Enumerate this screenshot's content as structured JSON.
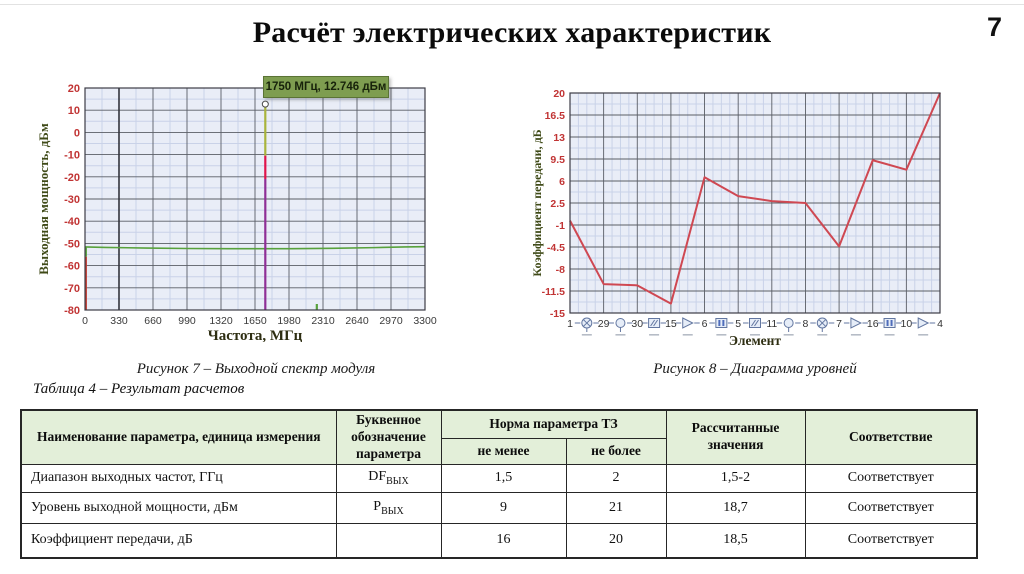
{
  "page": {
    "title": "Расчёт электрических характеристик",
    "page_number": "7"
  },
  "figure7": {
    "caption": "Рисунок 7 – Выходной спектр модуля",
    "marker_label": "1750 МГц, 12.746 дБм"
  },
  "figure8": {
    "caption": "Рисунок 8 – Диаграмма уровней"
  },
  "chart_data": [
    {
      "type": "line",
      "title": "Выходной спектр модуля",
      "xlabel": "Частота, МГц",
      "ylabel": "Выходная мощность, дБм",
      "xlim": [
        0,
        3300
      ],
      "ylim": [
        -80,
        20
      ],
      "xticks": [
        0,
        330,
        660,
        990,
        1320,
        1650,
        1980,
        2310,
        2640,
        2970,
        3300
      ],
      "yticks": [
        20,
        10,
        0,
        -10,
        -20,
        -30,
        -40,
        -50,
        -60,
        -70,
        -80
      ],
      "grid": true,
      "marker_line_x": 330,
      "noise_floor": {
        "color": "#58a23c",
        "x": [
          0,
          200,
          600,
          1000,
          1400,
          1650,
          2000,
          2400,
          2800,
          3100,
          3300
        ],
        "y": [
          -51.6,
          -51.8,
          -52.1,
          -52.3,
          -52.4,
          -52.4,
          -52.4,
          -52.2,
          -51.9,
          -51.6,
          -51.5
        ]
      },
      "segments": [
        {
          "x": 1750,
          "from": 12.746,
          "to": -10.5,
          "color": "#a9b43c"
        },
        {
          "x": 1750,
          "from": -10.5,
          "to": -21,
          "color": "#e0144b"
        },
        {
          "x": 1750,
          "from": -21,
          "to": -80,
          "color": "#8f2f96"
        },
        {
          "x": 8,
          "from": -51.8,
          "to": -56,
          "color": "#58a23c"
        },
        {
          "x": 8,
          "from": -56,
          "to": -80,
          "color": "#c03a30"
        },
        {
          "x": 2250,
          "from": -77.3,
          "to": -80,
          "color": "#58a23c"
        }
      ],
      "peak_marker": {
        "x": 1750,
        "y": 12.746,
        "label": "1750 МГц, 12.746 дБм"
      }
    },
    {
      "type": "line",
      "title": "Диаграмма уровней",
      "xlabel": "Элемент",
      "ylabel": "Коэффициент передачи, дБ",
      "ylim": [
        -15,
        20
      ],
      "yticks": [
        20,
        16.5,
        13,
        9.5,
        6,
        2.5,
        -1,
        -4.5,
        -8,
        -11.5,
        -15
      ],
      "grid": true,
      "categories": [
        "1",
        "29",
        "30",
        "15",
        "6",
        "5",
        "11",
        "8",
        "7",
        "16",
        "10",
        "4"
      ],
      "values": [
        -0.3,
        -10.4,
        -10.6,
        -13.5,
        6.6,
        3.6,
        2.8,
        2.5,
        -4.4,
        9.3,
        7.8,
        20
      ],
      "icons_between": [
        "mixer",
        "oscillator",
        "filter-hatch",
        "amplifier",
        "filter-bars",
        "filter-hatch",
        "oscillator",
        "mixer",
        "amplifier",
        "filter-bars",
        "amplifier"
      ],
      "line_color": "#cf4852"
    }
  ],
  "table": {
    "caption": "Таблица 4 – Результат расчетов",
    "header": {
      "name": "Наименование параметра, единица измерения",
      "symbol": "Буквенное обозначение параметра",
      "norm": "Норма параметра ТЗ",
      "not_less": "не менее",
      "not_more": "не более",
      "calculated": "Рассчитанные значения",
      "conformity": "Соответствие"
    },
    "rows": [
      {
        "name": "Диапазон выходных частот, ГГц",
        "symbol_main": "DF",
        "symbol_sub": "ВЫХ",
        "not_less": "1,5",
        "not_more": "2",
        "calculated": "1,5-2",
        "conformity": "Соответствует"
      },
      {
        "name": "Уровень выходной мощности, дБм",
        "symbol_main": "P",
        "symbol_sub": "ВЫХ",
        "not_less": "9",
        "not_more": "21",
        "calculated": "18,7",
        "conformity": "Соответствует"
      },
      {
        "name": "Коэффициент передачи, дБ",
        "symbol_main": "",
        "symbol_sub": "",
        "not_less": "16",
        "not_more": "20",
        "calculated": "18,5",
        "conformity": "Соответствует"
      }
    ]
  },
  "colors": {
    "accent_olive": "#7e9d50",
    "plot_bg": "#e9edf7",
    "grid_major": "#5a5e66",
    "grid_minor": "#c9d2e8",
    "tick_red": "#c13434",
    "axis_label": "#3f4a17",
    "icon_blue": "#6276a0",
    "table_header_green": "#e3efd9"
  }
}
